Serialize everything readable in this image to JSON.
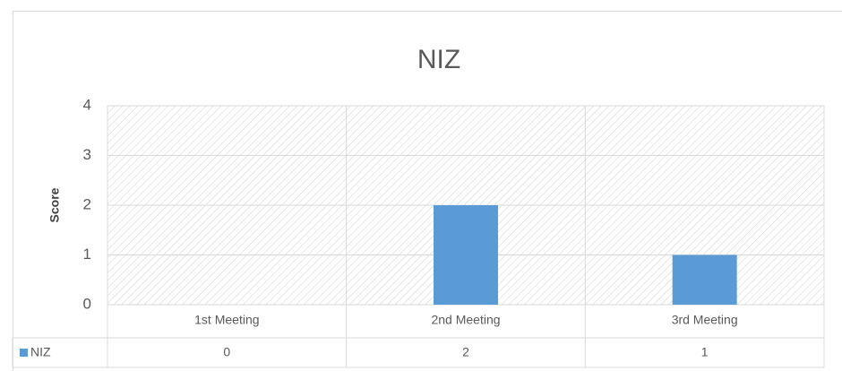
{
  "chart_data": {
    "type": "bar",
    "title": "NIZ",
    "y_label": "Score",
    "categories": [
      "1st Meeting",
      "2nd Meeting",
      "3rd Meeting"
    ],
    "series": [
      {
        "name": "NIZ",
        "color": "#5b9bd5",
        "values": [
          0,
          2,
          1
        ]
      }
    ],
    "ylim": [
      0,
      4
    ],
    "yticks": [
      0,
      1,
      2,
      3,
      4
    ],
    "grid": true
  }
}
